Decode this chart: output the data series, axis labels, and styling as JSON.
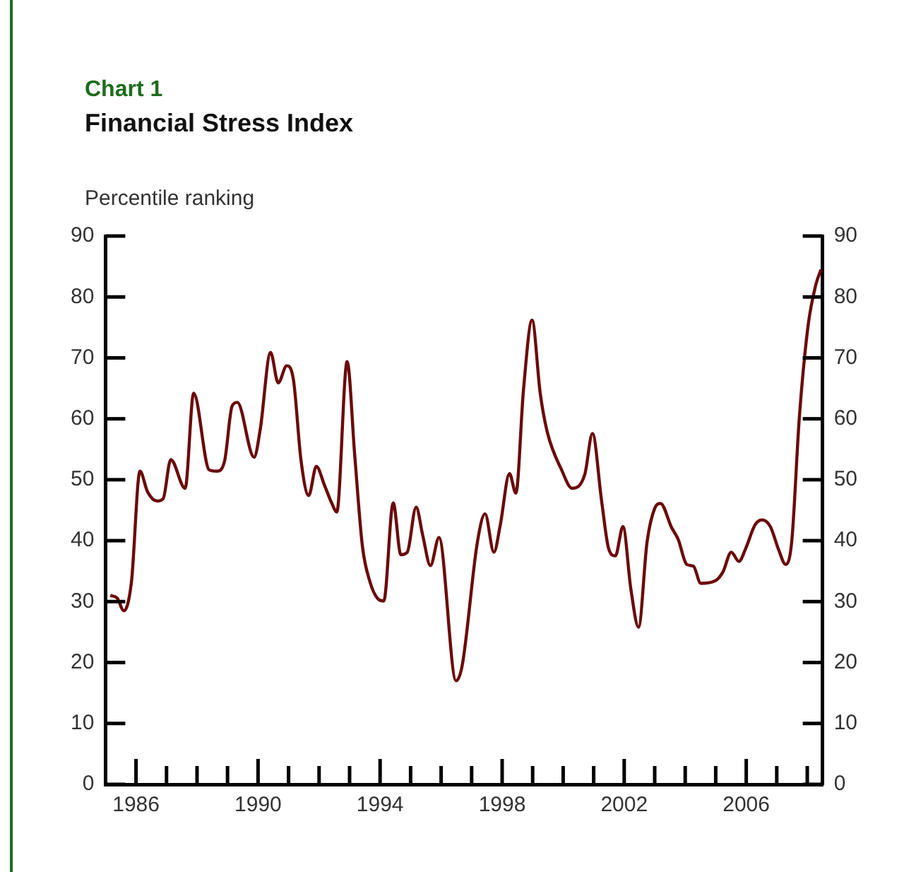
{
  "chart_data": {
    "type": "line",
    "title": "Chart 1",
    "subtitle": "Financial Stress Index",
    "ylabel": "Percentile ranking",
    "series": [
      {
        "color": "#6b0a0a",
        "x": [
          1985.16,
          1985.38,
          1985.6,
          1985.85,
          1986.13,
          1986.38,
          1986.69,
          1986.89,
          1987.14,
          1987.61,
          1987.89,
          1988.4,
          1988.65,
          1988.9,
          1989.15,
          1989.32,
          1989.87,
          1990.07,
          1990.41,
          1990.66,
          1990.94,
          1991.16,
          1991.41,
          1991.66,
          1991.91,
          1992.17,
          1992.42,
          1992.58,
          1992.92,
          1993.17,
          1993.42,
          1993.67,
          1993.92,
          1994.12,
          1994.43,
          1994.68,
          1994.89,
          1995.18,
          1995.4,
          1995.65,
          1995.93,
          1996.49,
          1996.69,
          1997.19,
          1997.44,
          1997.73,
          1997.94,
          1998.24,
          1998.45,
          1998.7,
          1998.98,
          1999.25,
          1999.48,
          1999.95,
          2000.29,
          2000.71,
          2000.96,
          2001.26,
          2001.49,
          2001.71,
          2001.96,
          2002.22,
          2002.47,
          2002.75,
          2003.0,
          2003.19,
          2003.55,
          2003.77,
          2004.05,
          2004.27,
          2004.51,
          2004.98,
          2005.23,
          2005.51,
          2005.76,
          2005.98,
          2006.29,
          2006.52,
          2006.79,
          2007.07,
          2007.29,
          2007.49,
          2007.74,
          2008.03,
          2008.28,
          2008.45
        ],
        "values": [
          31.0,
          30.6,
          28.5,
          33.2,
          51.4,
          48.0,
          46.5,
          46.9,
          53.3,
          48.6,
          64.2,
          51.6,
          51.4,
          53.0,
          62.1,
          62.7,
          53.7,
          58.2,
          70.9,
          65.9,
          68.7,
          66.4,
          53.1,
          47.4,
          52.2,
          49.2,
          46.1,
          44.7,
          69.4,
          53.9,
          39.1,
          33.2,
          30.5,
          30.1,
          46.2,
          37.7,
          38.1,
          45.5,
          40.8,
          35.9,
          40.5,
          17.0,
          19.5,
          39.8,
          44.4,
          38.1,
          42.6,
          51.0,
          47.8,
          64.8,
          76.2,
          64.1,
          57.8,
          51.6,
          48.6,
          50.9,
          57.6,
          46.5,
          38.7,
          37.5,
          42.3,
          32.0,
          25.8,
          39.8,
          45.3,
          46.1,
          42.2,
          40.2,
          36.1,
          35.8,
          33.0,
          33.4,
          34.8,
          38.1,
          36.6,
          38.7,
          42.6,
          43.4,
          42.3,
          38.4,
          36.1,
          39.8,
          60.2,
          75.4,
          82.0,
          84.5
        ]
      }
    ],
    "xlim": [
      1985,
      2008.5
    ],
    "xticks": [
      1986,
      {
        "value": 1987,
        "label": null
      },
      {
        "value": 1988,
        "label": null
      },
      {
        "value": 1989,
        "label": null
      },
      1990,
      {
        "value": 1991,
        "label": null
      },
      {
        "value": 1992,
        "label": null
      },
      {
        "value": 1993,
        "label": null
      },
      1994,
      {
        "value": 1995,
        "label": null
      },
      {
        "value": 1996,
        "label": null
      },
      {
        "value": 1997,
        "label": null
      },
      1998,
      {
        "value": 1999,
        "label": null
      },
      {
        "value": 2000,
        "label": null
      },
      {
        "value": 2001,
        "label": null
      },
      2002,
      {
        "value": 2003,
        "label": null
      },
      {
        "value": 2004,
        "label": null
      },
      {
        "value": 2005,
        "label": null
      },
      2006,
      {
        "value": 2007,
        "label": null
      },
      {
        "value": 2008,
        "label": null
      }
    ],
    "ylim": [
      0,
      90
    ],
    "yticks": [
      0,
      10,
      20,
      30,
      40,
      50,
      60,
      70,
      80,
      90
    ],
    "y2lim": [
      0,
      90
    ],
    "y2ticks": [
      0,
      10,
      20,
      30,
      40,
      50,
      60,
      70,
      80,
      90
    ],
    "grid": false,
    "legend": false,
    "marker": "none",
    "line_style": "solid"
  }
}
